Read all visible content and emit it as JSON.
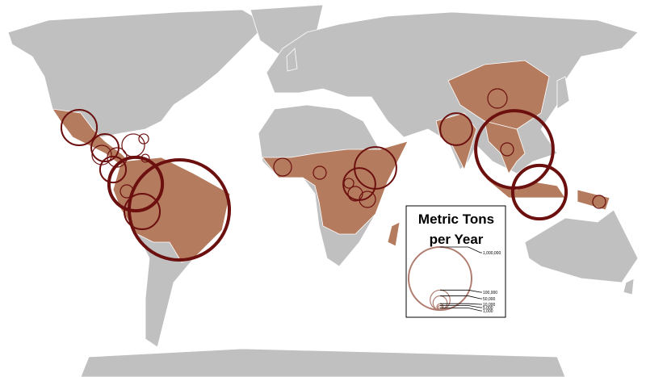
{
  "legend": {
    "title": [
      "Metric Tons",
      "per Year"
    ],
    "ticks": [
      {
        "value": 1000000,
        "label": "1,000,000"
      },
      {
        "value": 100000,
        "label": "100,000"
      },
      {
        "value": 50000,
        "label": "50,000"
      },
      {
        "value": 10000,
        "label": "10,000"
      },
      {
        "value": 5000,
        "label": "5,000"
      },
      {
        "value": 1000,
        "label": "1,000"
      }
    ]
  },
  "symbols": {
    "values": [
      2530000,
      720000,
      320000,
      42000,
      320000,
      190000,
      95000,
      95000,
      170000,
      130000,
      24000,
      16000,
      440000,
      80000,
      42000,
      260000,
      53000,
      66000,
      260000,
      95000,
      1510000,
      42000,
      720000,
      42000,
      24000
    ]
  }
}
